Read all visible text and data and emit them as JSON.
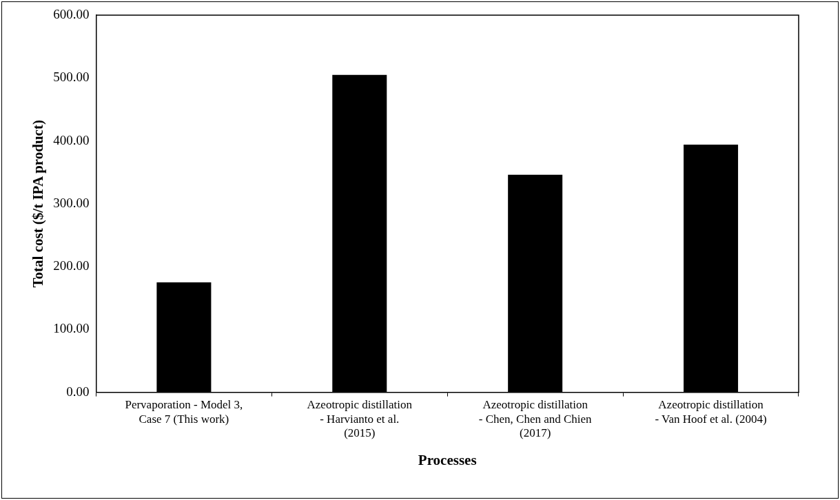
{
  "chart_data": {
    "type": "bar",
    "xlabel": "Processes",
    "ylabel": "Total cost ($/t IPA product)",
    "categories": [
      "Pervaporation - Model 3, Case 7 (This work)",
      "Azeotropic distillation - Harvianto et al. (2015)",
      "Azeotropic distillation - Chen, Chen and Chien (2017)",
      "Azeotropic distillation - Van Hoof et al. (2004)"
    ],
    "values": [
      175,
      505,
      346,
      394
    ],
    "color": "#000000",
    "ylim": [
      0,
      600
    ],
    "yticks": [
      {
        "value": 0,
        "label": "0.00"
      },
      {
        "value": 100,
        "label": "100.00"
      },
      {
        "value": 200,
        "label": "200.00"
      },
      {
        "value": 300,
        "label": "300.00"
      },
      {
        "value": 400,
        "label": "400.00"
      },
      {
        "value": 500,
        "label": "500.00"
      },
      {
        "value": 600,
        "label": "600.00"
      }
    ],
    "grid": false,
    "legend": false
  }
}
